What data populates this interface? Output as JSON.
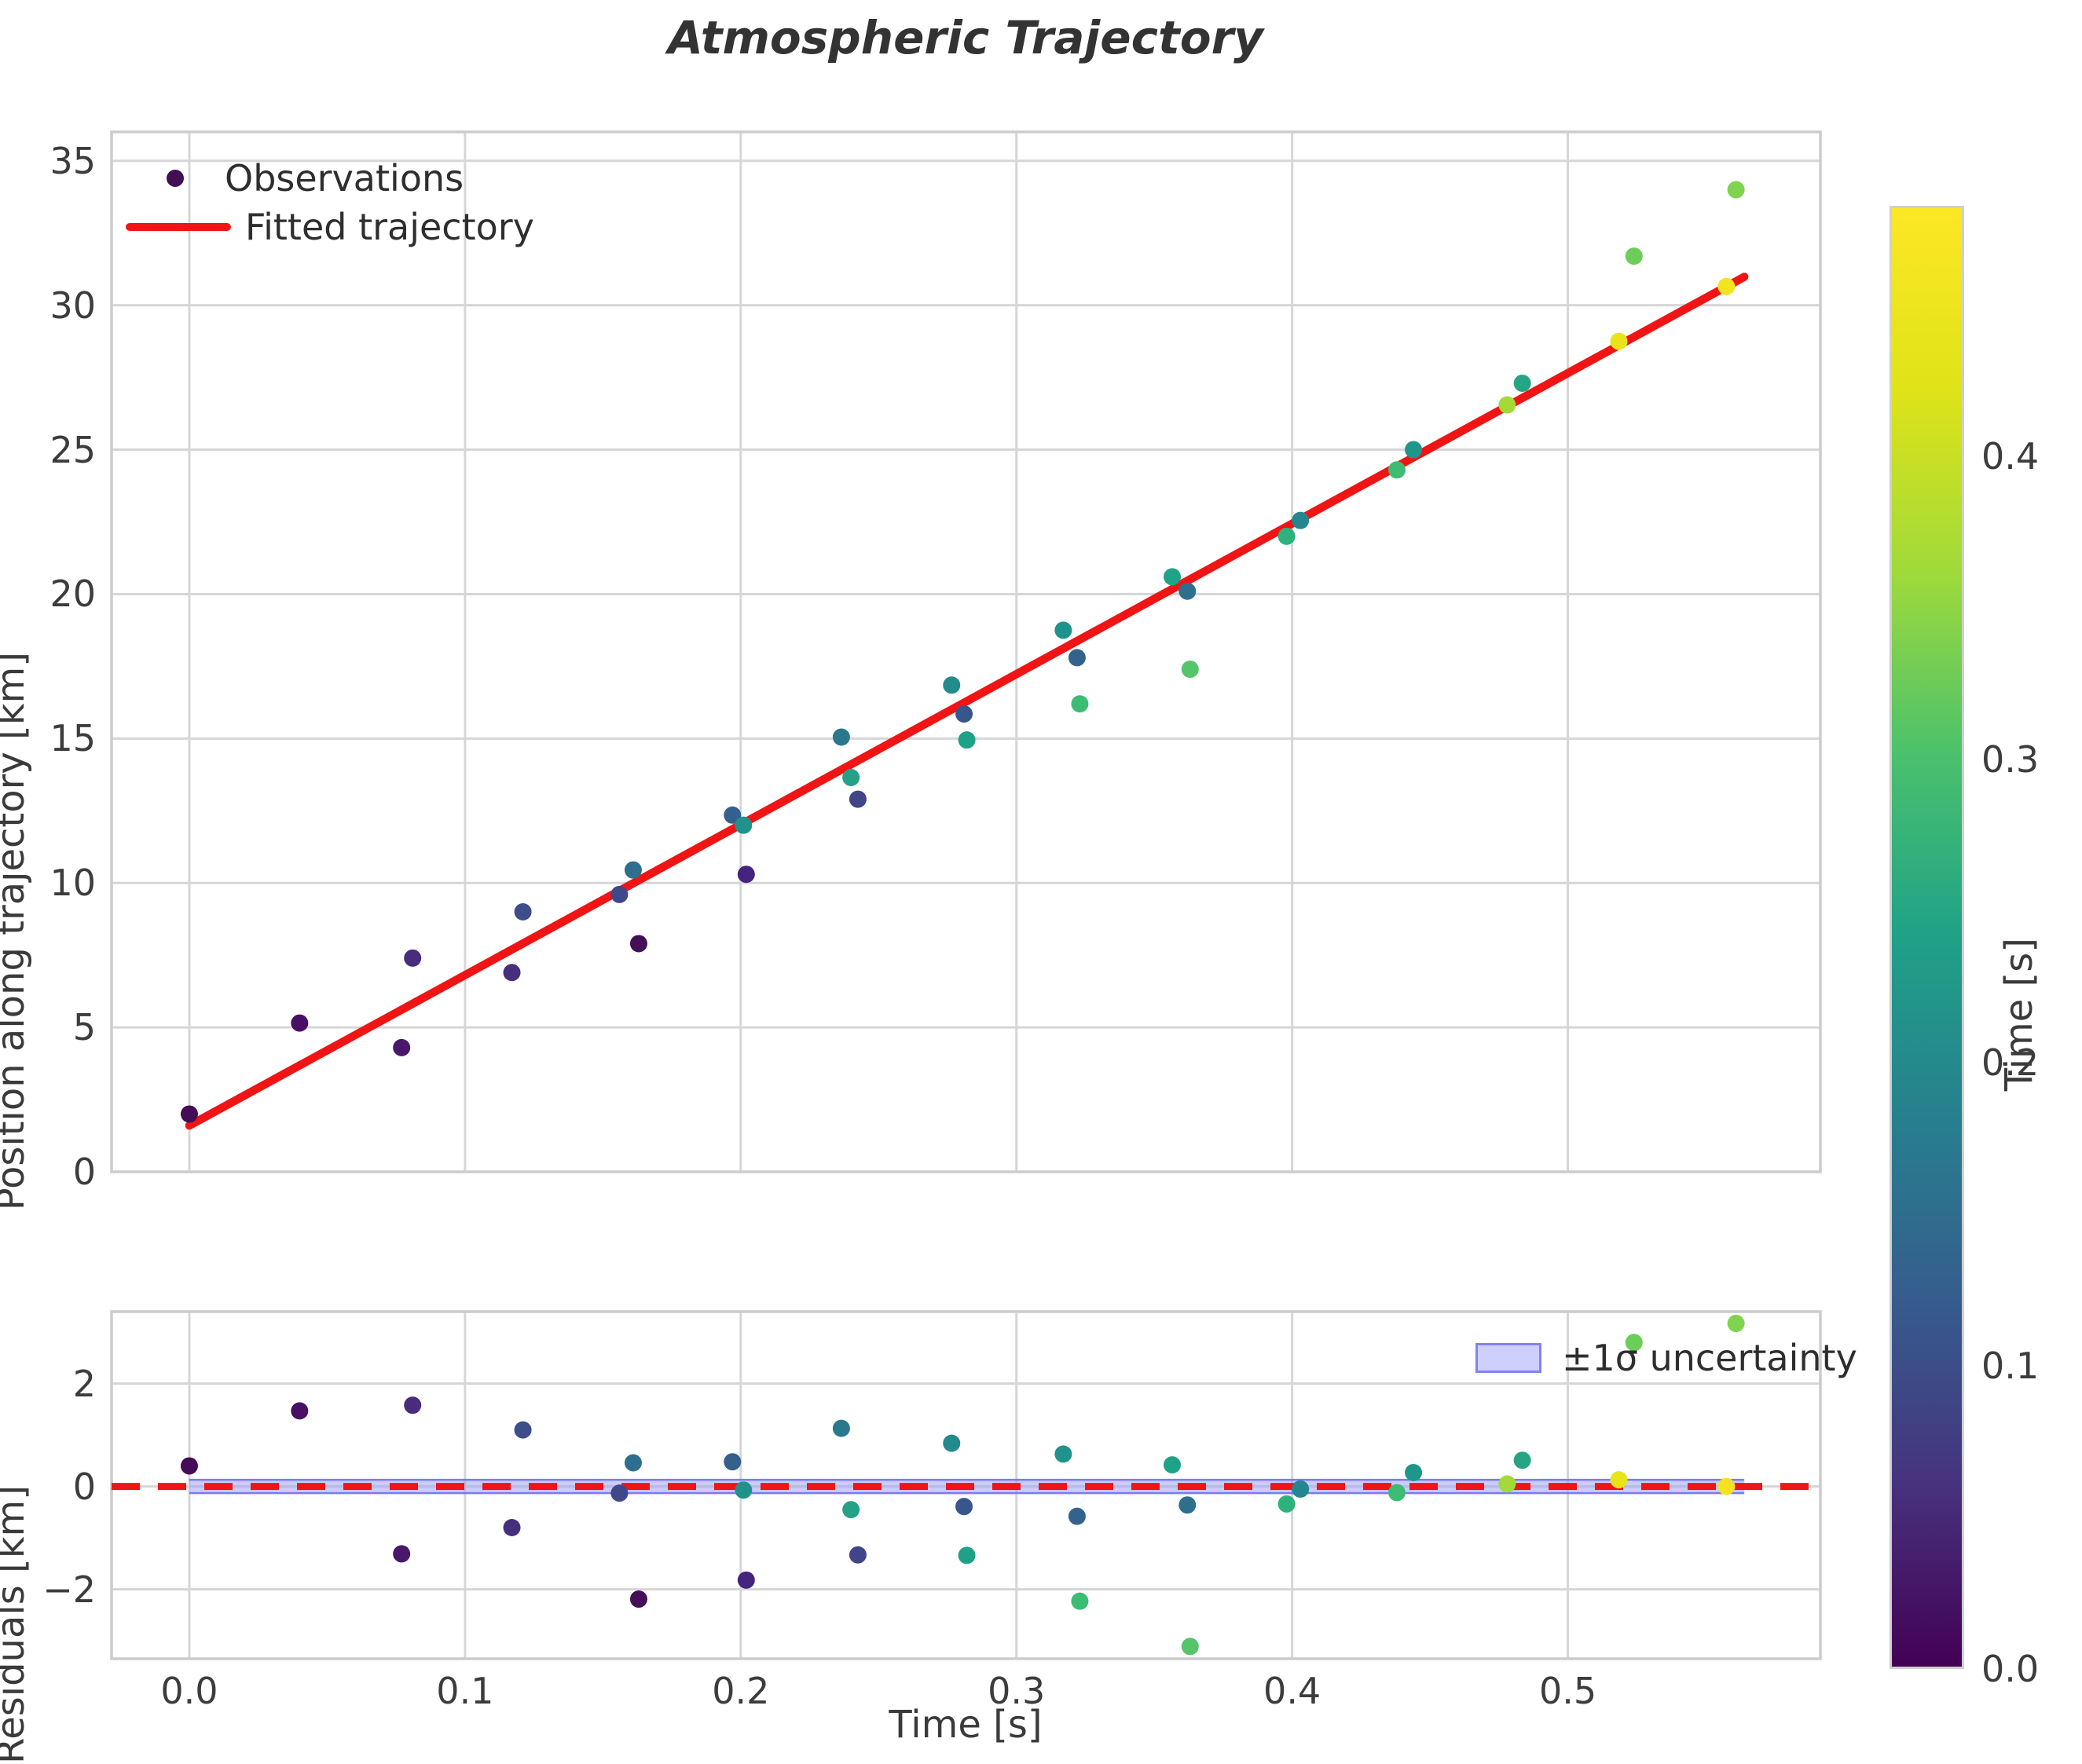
{
  "chart_data": {
    "type": "scatter",
    "title": "Atmospheric Trajectory",
    "xlabel": "Time [s]",
    "ylabel_main": "Position along trajectory [km]",
    "ylabel_resid": "Residuals [km]",
    "legend": {
      "observations": "Observations",
      "fit": "Fitted trajectory",
      "band": "±1σ uncertainty"
    },
    "axes": {
      "xlim": [
        -0.0282,
        0.5916
      ],
      "x_tick_values": [
        0.0,
        0.1,
        0.2,
        0.3,
        0.4,
        0.5
      ],
      "x_tick_labels": [
        "0.0",
        "0.1",
        "0.2",
        "0.3",
        "0.4",
        "0.5"
      ],
      "main_ylim": [
        0,
        36
      ],
      "main_y_tick_values": [
        0,
        5,
        10,
        15,
        20,
        25,
        30,
        35
      ],
      "main_y_tick_labels": [
        "0",
        "5",
        "10",
        "15",
        "20",
        "25",
        "30",
        "35"
      ],
      "resid_ylim": [
        -3.35,
        3.4
      ],
      "resid_y_tick_values": [
        -2,
        0,
        2
      ],
      "resid_y_tick_labels": [
        "−2",
        "0",
        "2"
      ],
      "grid": true,
      "grid_color": "#d6d6d6",
      "spine_color": "#cccccc",
      "text_color": "#3c3c3c"
    },
    "fit_line": {
      "slope": 52.1,
      "intercept": 1.6,
      "t_start": 0.0,
      "t_end": 0.564,
      "color": "#f01414"
    },
    "zero_line": {
      "color": "#f01414",
      "style": "dashed"
    },
    "uncertainty_band": {
      "halfwidth_km": 0.13,
      "t_start": 0.0,
      "t_end": 0.564,
      "fill": "rgba(150,155,250,0.5)",
      "edge": "rgba(110,110,238,0.9)"
    },
    "colorbar": {
      "label": "Time [s]",
      "vmin": 0.0,
      "vmax": 0.4825,
      "tick_values": [
        0.0,
        0.1,
        0.2,
        0.3,
        0.4
      ],
      "tick_labels": [
        "0.0",
        "0.1",
        "0.2",
        "0.3",
        "0.4"
      ],
      "viridis_stops": [
        "#440154",
        "#46327e",
        "#365c8d",
        "#277f8e",
        "#1fa187",
        "#4ac16d",
        "#9fda3a",
        "#dfe318",
        "#fde725"
      ]
    },
    "points": [
      {
        "t": 0.0,
        "pos": 2.0,
        "resid": 0.4,
        "color": "#450d54"
      },
      {
        "t": 0.04,
        "pos": 5.15,
        "resid": 1.47,
        "color": "#471064"
      },
      {
        "t": 0.077,
        "pos": 4.3,
        "resid": -1.31,
        "color": "#48186b"
      },
      {
        "t": 0.081,
        "pos": 7.4,
        "resid": 1.58,
        "color": "#472d7b"
      },
      {
        "t": 0.117,
        "pos": 6.9,
        "resid": -0.8,
        "color": "#46307e"
      },
      {
        "t": 0.121,
        "pos": 9.0,
        "resid": 1.1,
        "color": "#3d4e8a"
      },
      {
        "t": 0.156,
        "pos": 9.6,
        "resid": -0.13,
        "color": "#3f4889"
      },
      {
        "t": 0.161,
        "pos": 10.45,
        "resid": 0.46,
        "color": "#2e6e8e"
      },
      {
        "t": 0.163,
        "pos": 7.9,
        "resid": -2.19,
        "color": "#440e58"
      },
      {
        "t": 0.197,
        "pos": 12.35,
        "resid": 0.48,
        "color": "#355f8d"
      },
      {
        "t": 0.201,
        "pos": 12.0,
        "resid": -0.07,
        "color": "#21918c"
      },
      {
        "t": 0.202,
        "pos": 10.3,
        "resid": -1.82,
        "color": "#45247e"
      },
      {
        "t": 0.2365,
        "pos": 15.05,
        "resid": 1.13,
        "color": "#2a788e"
      },
      {
        "t": 0.24,
        "pos": 13.65,
        "resid": -0.45,
        "color": "#25a186"
      },
      {
        "t": 0.2425,
        "pos": 12.9,
        "resid": -1.33,
        "color": "#414487"
      },
      {
        "t": 0.2765,
        "pos": 16.85,
        "resid": 0.84,
        "color": "#238a8d"
      },
      {
        "t": 0.281,
        "pos": 15.85,
        "resid": -0.39,
        "color": "#39568c"
      },
      {
        "t": 0.282,
        "pos": 14.95,
        "resid": -1.34,
        "color": "#1fa187"
      },
      {
        "t": 0.317,
        "pos": 18.75,
        "resid": 0.63,
        "color": "#20928c"
      },
      {
        "t": 0.322,
        "pos": 17.8,
        "resid": -0.58,
        "color": "#33638d"
      },
      {
        "t": 0.323,
        "pos": 16.2,
        "resid": -2.23,
        "color": "#3dbc74"
      },
      {
        "t": 0.3565,
        "pos": 20.6,
        "resid": 0.42,
        "color": "#1fa386"
      },
      {
        "t": 0.362,
        "pos": 20.1,
        "resid": -0.36,
        "color": "#2d708e"
      },
      {
        "t": 0.363,
        "pos": 17.4,
        "resid": -3.11,
        "color": "#54c568"
      },
      {
        "t": 0.398,
        "pos": 22.0,
        "resid": -0.34,
        "color": "#2db27d"
      },
      {
        "t": 0.403,
        "pos": 22.55,
        "resid": -0.05,
        "color": "#24868e"
      },
      {
        "t": 0.438,
        "pos": 24.3,
        "resid": -0.12,
        "color": "#3fbc73"
      },
      {
        "t": 0.444,
        "pos": 25.0,
        "resid": 0.27,
        "color": "#1f968b"
      },
      {
        "t": 0.478,
        "pos": 26.55,
        "resid": 0.05,
        "color": "#a2da37"
      },
      {
        "t": 0.4835,
        "pos": 27.3,
        "resid": 0.51,
        "color": "#26a585"
      },
      {
        "t": 0.5185,
        "pos": 28.75,
        "resid": 0.13,
        "color": "#e8e419"
      },
      {
        "t": 0.524,
        "pos": 31.7,
        "resid": 2.8,
        "color": "#6cce59"
      },
      {
        "t": 0.5575,
        "pos": 30.65,
        "resid": 0.0,
        "color": "#f2e51f"
      },
      {
        "t": 0.561,
        "pos": 34.0,
        "resid": 3.17,
        "color": "#7fd34e"
      }
    ]
  }
}
